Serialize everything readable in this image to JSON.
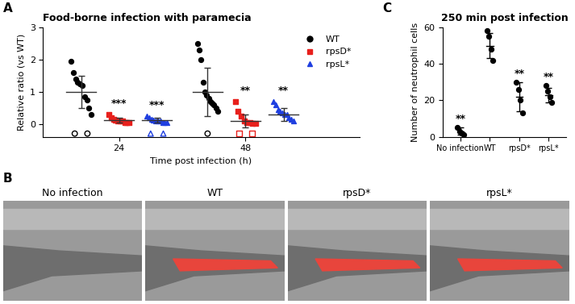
{
  "chart_data": [
    {
      "type": "scatter",
      "panel": "A",
      "title": "Food-borne infection with paramecia",
      "x_label": "Time post infection (h)",
      "y_label": "Relative ratio (vs WT)",
      "categories": [
        "24",
        "48"
      ],
      "ylim": [
        -0.4,
        3
      ],
      "yticks": [
        0,
        1,
        2,
        3
      ],
      "legend": "upper right",
      "series": [
        {
          "name": "WT",
          "color": "#000000",
          "marker": "o",
          "values": [
            [
              1.95,
              1.6,
              1.4,
              1.3,
              1.25,
              1.2,
              0.85,
              0.75,
              0.5,
              0.3
            ],
            [
              2.5,
              2.3,
              2.0,
              1.3,
              1.0,
              0.9,
              0.8,
              0.7,
              0.65,
              0.6,
              0.5,
              0.4
            ]
          ],
          "undetected_values": [
            [
              -0.3,
              -0.3
            ],
            [
              -0.3
            ]
          ],
          "mean": [
            1.0,
            1.0
          ],
          "sd": [
            0.5,
            0.75
          ],
          "significance": [
            null,
            null
          ]
        },
        {
          "name": "rpsD*",
          "color": "#e8201c",
          "marker": "s",
          "values": [
            [
              0.3,
              0.2,
              0.15,
              0.12,
              0.1,
              0.1,
              0.08,
              0.05,
              0.05,
              0.03
            ],
            [
              0.7,
              0.4,
              0.25,
              0.1,
              0.05,
              0.05,
              0.02,
              0.02
            ]
          ],
          "undetected_values": [
            [],
            [
              -0.3,
              -0.3
            ]
          ],
          "mean": [
            0.12,
            0.1
          ],
          "sd": [
            0.08,
            0.2
          ],
          "significance": [
            "***",
            "**"
          ]
        },
        {
          "name": "rpsL*",
          "color": "#1f3fe0",
          "marker": "^",
          "values": [
            [
              0.25,
              0.2,
              0.15,
              0.12,
              0.1,
              0.1,
              0.08,
              0.05,
              0.05,
              0.03
            ],
            [
              0.7,
              0.6,
              0.45,
              0.4,
              0.35,
              0.3,
              0.3,
              0.2,
              0.15,
              0.1
            ]
          ],
          "undetected_values": [
            [
              -0.3,
              -0.3
            ],
            []
          ],
          "mean": [
            0.12,
            0.3
          ],
          "sd": [
            0.07,
            0.2
          ],
          "significance": [
            "***",
            "**"
          ]
        }
      ]
    },
    {
      "type": "scatter",
      "panel": "C",
      "title": "250 min post infection",
      "y_label": "Number of neutrophil cells",
      "categories": [
        "No infection",
        "WT",
        "rpsD*",
        "rpsL*"
      ],
      "ylim": [
        0,
        60
      ],
      "yticks": [
        0,
        20,
        40,
        60
      ],
      "color": "#000000",
      "marker": "o",
      "values": [
        [
          5,
          3,
          2,
          1
        ],
        [
          58,
          55,
          48,
          42
        ],
        [
          30,
          26,
          20,
          13
        ],
        [
          28,
          25,
          22,
          19
        ]
      ],
      "mean": [
        3,
        50,
        22,
        23
      ],
      "sd": [
        2,
        7,
        8,
        4
      ],
      "significance": [
        "**",
        null,
        "**",
        "**"
      ]
    }
  ],
  "images": {
    "panel": "B",
    "labels": [
      "No infection",
      "WT",
      "rpsD*",
      "rpsL*"
    ]
  }
}
